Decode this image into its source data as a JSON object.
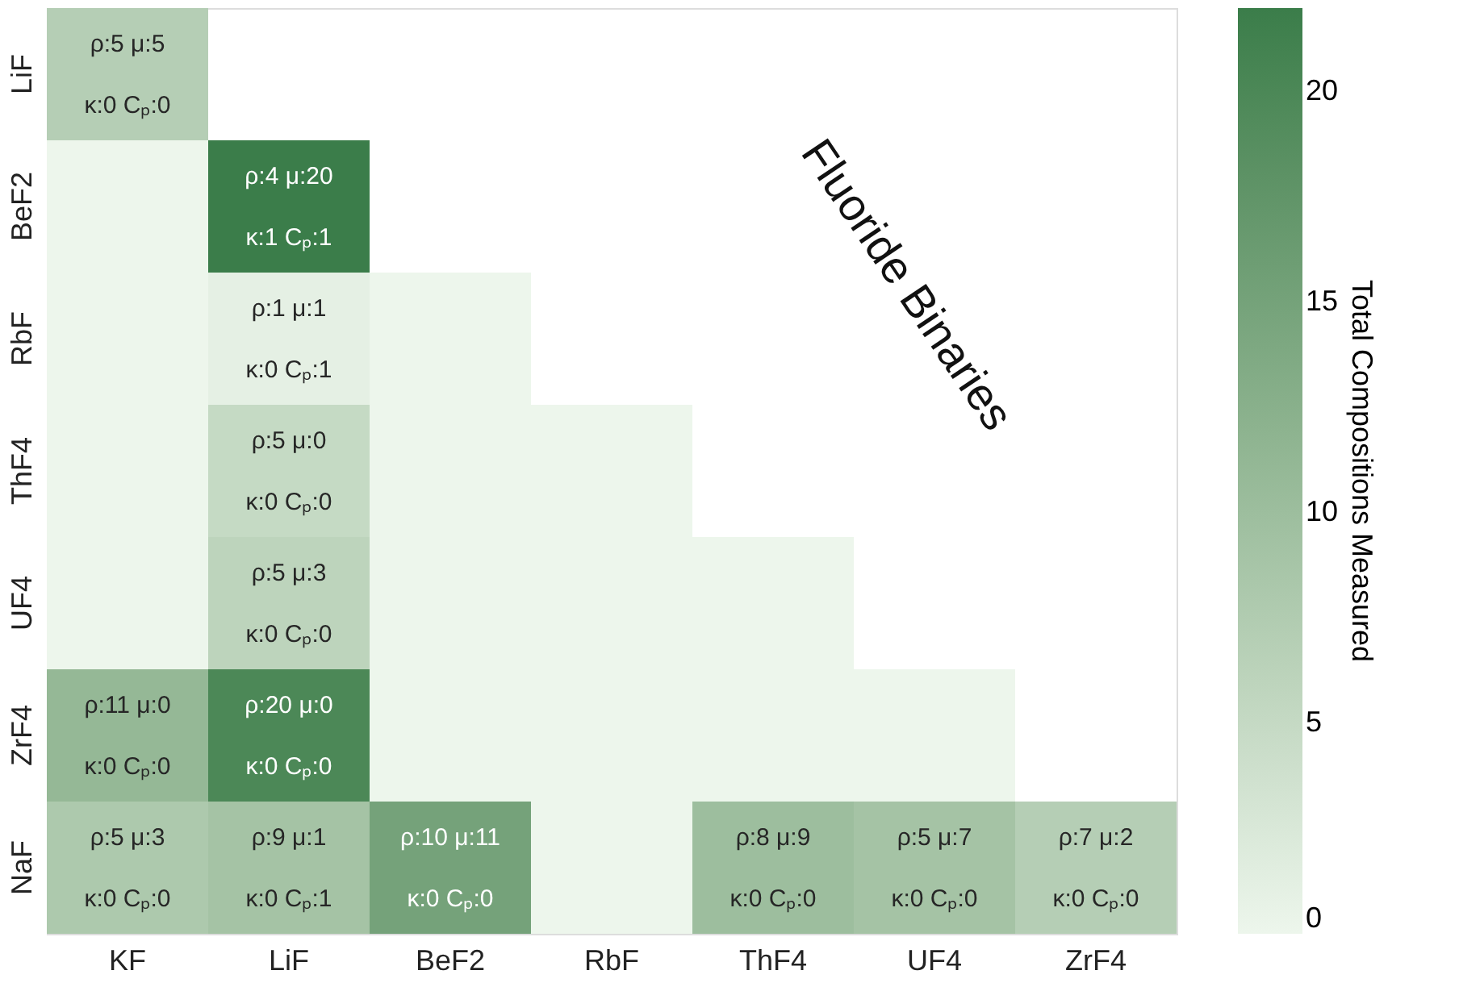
{
  "chart_data": {
    "type": "heatmap",
    "categories": [
      "KF",
      "LiF",
      "BeF2",
      "RbF",
      "ThF4",
      "UF4",
      "ZrF4"
    ],
    "y_categories": [
      "LiF",
      "BeF2",
      "RbF",
      "ThF4",
      "UF4",
      "ZrF4",
      "NaF"
    ],
    "cells": [
      [
        7,
        null,
        null,
        null,
        null,
        null,
        null
      ],
      [
        0,
        22,
        null,
        null,
        null,
        null,
        null
      ],
      [
        0,
        1,
        0,
        null,
        null,
        null,
        null
      ],
      [
        0,
        5,
        0,
        0,
        null,
        null,
        null
      ],
      [
        0,
        6,
        0,
        0,
        0,
        null,
        null
      ],
      [
        11,
        20,
        0,
        0,
        0,
        0,
        null
      ],
      [
        8,
        9,
        15,
        0,
        10,
        9,
        7
      ]
    ],
    "cell_labels": [
      [
        "ρ:5  μ:5\nκ:0  Cₚ:0",
        null,
        null,
        null,
        null,
        null,
        null
      ],
      [
        null,
        "ρ:4  μ:20\nκ:1  Cₚ:1",
        null,
        null,
        null,
        null,
        null
      ],
      [
        null,
        "ρ:1  μ:1\nκ:0  Cₚ:1",
        null,
        null,
        null,
        null,
        null
      ],
      [
        null,
        "ρ:5  μ:0\nκ:0  Cₚ:0",
        null,
        null,
        null,
        null,
        null
      ],
      [
        null,
        "ρ:5  μ:3\nκ:0  Cₚ:0",
        null,
        null,
        null,
        null,
        null
      ],
      [
        "ρ:11  μ:0\nκ:0  Cₚ:0",
        "ρ:20  μ:0\nκ:0  Cₚ:0",
        null,
        null,
        null,
        null,
        null
      ],
      [
        "ρ:5  μ:3\nκ:0  Cₚ:0",
        "ρ:9  μ:1\nκ:0  Cₚ:1",
        "ρ:10  μ:11\nκ:0  Cₚ:0",
        null,
        "ρ:8  μ:9\nκ:0  Cₚ:0",
        "ρ:5  μ:7\nκ:0  Cₚ:0",
        "ρ:7  μ:2\nκ:0  Cₚ:0"
      ]
    ],
    "clabel": "Total Compositions Measured",
    "clim": [
      0,
      22
    ],
    "cticks": [
      0,
      5,
      10,
      15,
      20
    ],
    "annotations": [
      "Fluoride Binaries"
    ]
  }
}
